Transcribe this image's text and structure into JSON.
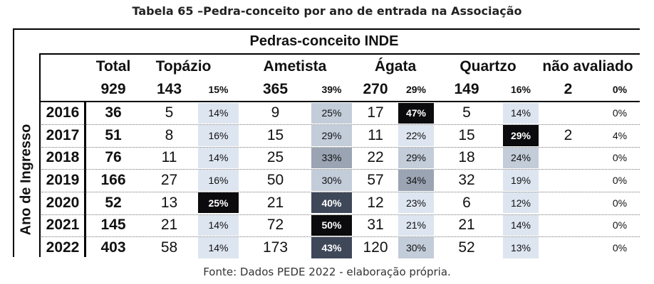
{
  "caption": "Tabela 65 –Pedra-conceito por ano de entrada na Associação",
  "source": "Fonte: Dados PEDE 2022 - elaboração própria.",
  "row_header": "Ano de Ingresso",
  "group_header": "Pedras-conceito INDE",
  "columns": {
    "total": "Total",
    "topazio": "Topázio",
    "ametista": "Ametista",
    "agata": "Ágata",
    "quartzo": "Quartzo",
    "nao_avaliado": "não avaliado"
  },
  "totals": {
    "total": "929",
    "topazio": "143",
    "topazio_pct": "15%",
    "ametista": "365",
    "ametista_pct": "39%",
    "agata": "270",
    "agata_pct": "29%",
    "quartzo": "149",
    "quartzo_pct": "16%",
    "nao_avaliado": "2",
    "nao_avaliado_pct": "0%"
  },
  "rows": [
    {
      "year": "2016",
      "total": "36",
      "topazio": "5",
      "topazio_pct": "14%",
      "ametista": "9",
      "ametista_pct": "25%",
      "agata": "17",
      "agata_pct": "47%",
      "quartzo": "5",
      "quartzo_pct": "14%",
      "nao_avaliado": "",
      "nao_avaliado_pct": "0%"
    },
    {
      "year": "2017",
      "total": "51",
      "topazio": "8",
      "topazio_pct": "16%",
      "ametista": "15",
      "ametista_pct": "29%",
      "agata": "11",
      "agata_pct": "22%",
      "quartzo": "15",
      "quartzo_pct": "29%",
      "nao_avaliado": "2",
      "nao_avaliado_pct": "4%"
    },
    {
      "year": "2018",
      "total": "76",
      "topazio": "11",
      "topazio_pct": "14%",
      "ametista": "25",
      "ametista_pct": "33%",
      "agata": "22",
      "agata_pct": "29%",
      "quartzo": "18",
      "quartzo_pct": "24%",
      "nao_avaliado": "",
      "nao_avaliado_pct": "0%"
    },
    {
      "year": "2019",
      "total": "166",
      "topazio": "27",
      "topazio_pct": "16%",
      "ametista": "50",
      "ametista_pct": "30%",
      "agata": "57",
      "agata_pct": "34%",
      "quartzo": "32",
      "quartzo_pct": "19%",
      "nao_avaliado": "",
      "nao_avaliado_pct": "0%"
    },
    {
      "year": "2020",
      "total": "52",
      "topazio": "13",
      "topazio_pct": "25%",
      "ametista": "21",
      "ametista_pct": "40%",
      "agata": "12",
      "agata_pct": "23%",
      "quartzo": "6",
      "quartzo_pct": "12%",
      "nao_avaliado": "",
      "nao_avaliado_pct": "0%"
    },
    {
      "year": "2021",
      "total": "145",
      "topazio": "21",
      "topazio_pct": "14%",
      "ametista": "72",
      "ametista_pct": "50%",
      "agata": "31",
      "agata_pct": "21%",
      "quartzo": "21",
      "quartzo_pct": "14%",
      "nao_avaliado": "",
      "nao_avaliado_pct": "0%"
    },
    {
      "year": "2022",
      "total": "403",
      "topazio": "58",
      "topazio_pct": "14%",
      "ametista": "173",
      "ametista_pct": "43%",
      "agata": "120",
      "agata_pct": "30%",
      "quartzo": "52",
      "quartzo_pct": "13%",
      "nao_avaliado": "",
      "nao_avaliado_pct": "0%"
    }
  ],
  "heatmap_colors": {
    "lightest": "#dde5f0",
    "light": "#c3ccd9",
    "mid": "#9aa4b3",
    "dark": "#3f4859",
    "darkest": "#0b0b0d"
  }
}
